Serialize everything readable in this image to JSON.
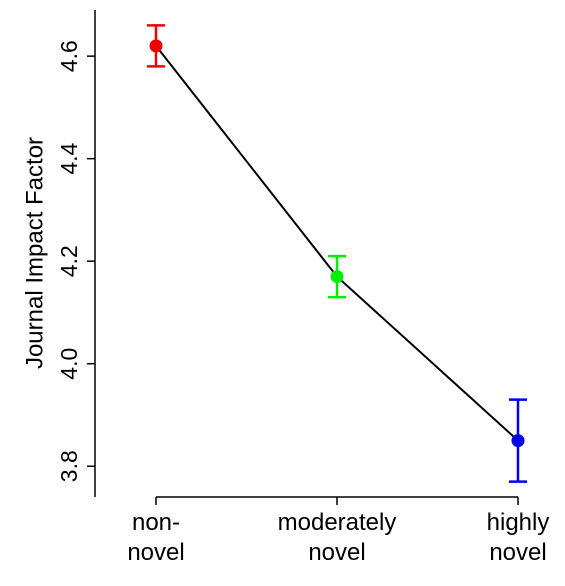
{
  "chart_data": {
    "type": "line",
    "ylabel": "Journal Impact Factor",
    "categories": [
      "non-\nnovel",
      "moderately\nnovel",
      "highly\nnovel"
    ],
    "values": [
      4.62,
      4.17,
      3.85
    ],
    "errors": [
      0.04,
      0.04,
      0.08
    ],
    "point_colors": [
      "#ee0000",
      "#00ee00",
      "#0000ee"
    ],
    "line_color": "#000000",
    "ylim": [
      3.74,
      4.69
    ],
    "yticks": [
      3.8,
      {
        "value": 4,
        "label": "4.0"
      },
      4.2,
      4.4,
      4.6
    ]
  }
}
